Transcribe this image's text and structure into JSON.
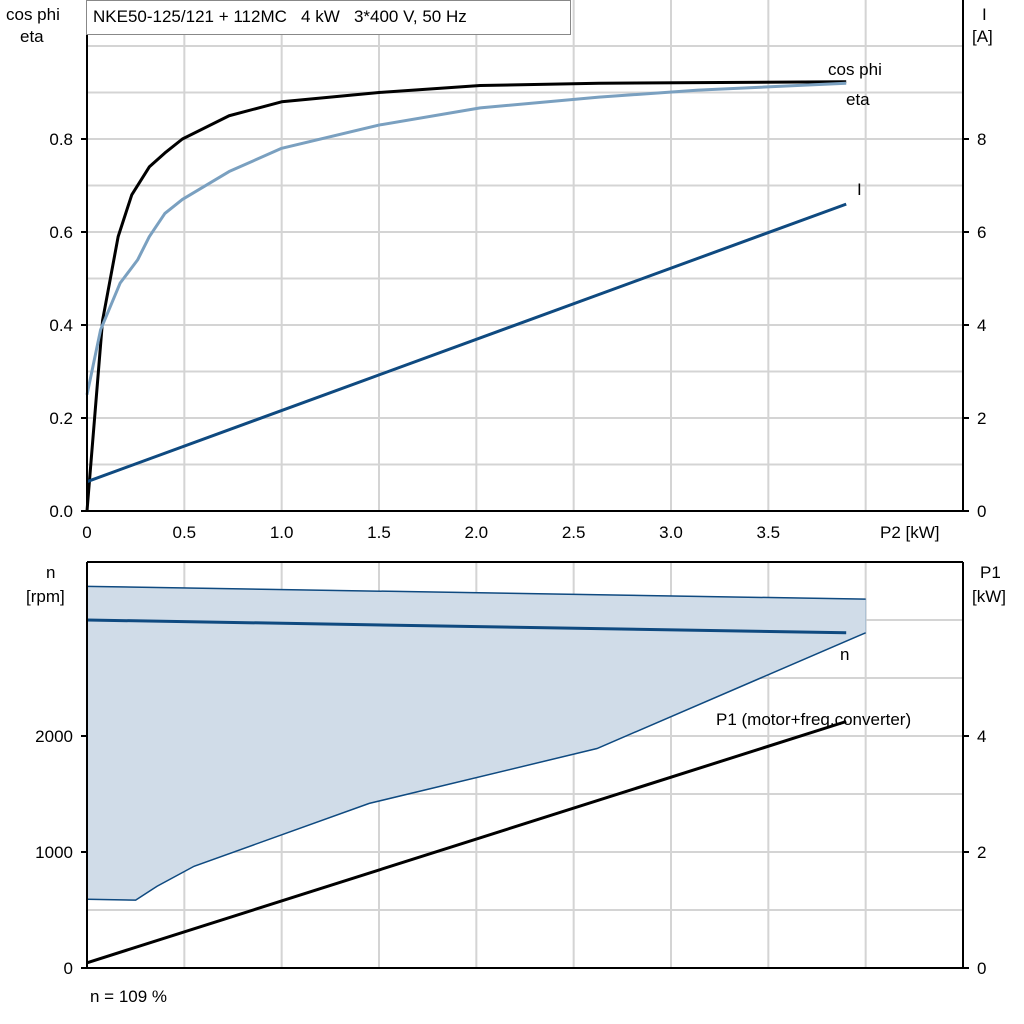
{
  "chart_data": [
    {
      "type": "line",
      "title": "NKE50-125/121 + 112MC   4 kW   3*400 V, 50 Hz",
      "xlabel": "P2 [kW]",
      "ylabel_left": [
        "cos phi",
        "eta"
      ],
      "ylabel_right": [
        "I",
        "[A]"
      ],
      "xlim": [
        0,
        4.5
      ],
      "ylim_left": [
        0,
        1.1
      ],
      "ylim_right": [
        0,
        11
      ],
      "x_ticks": [
        "0",
        "0.5",
        "1.0",
        "1.5",
        "2.0",
        "2.5",
        "3.0",
        "3.5"
      ],
      "x_tick_values": [
        0,
        0.5,
        1.0,
        1.5,
        2.0,
        2.5,
        3.0,
        3.5
      ],
      "y_ticks_left": [
        "0.0",
        "0.2",
        "0.4",
        "0.6",
        "0.8"
      ],
      "y_tick_values_left": [
        0,
        0.2,
        0.4,
        0.6,
        0.8
      ],
      "y_ticks_right": [
        "0",
        "2",
        "4",
        "6",
        "8"
      ],
      "y_tick_values_right": [
        0,
        2,
        4,
        6,
        8
      ],
      "grid": true,
      "series": [
        {
          "name": "eta",
          "axis": "left",
          "color": "#000000",
          "x": [
            0,
            0.08,
            0.16,
            0.23,
            0.32,
            0.4,
            0.49,
            0.73,
            1.0,
            1.5,
            2.02,
            2.63,
            3.9
          ],
          "y": [
            0,
            0.41,
            0.59,
            0.68,
            0.74,
            0.77,
            0.8,
            0.85,
            0.88,
            0.9,
            0.915,
            0.92,
            0.923
          ]
        },
        {
          "name": "cos phi",
          "axis": "left",
          "color": "#7aa0c0",
          "x": [
            0,
            0.07,
            0.17,
            0.26,
            0.32,
            0.4,
            0.49,
            0.73,
            1.0,
            1.5,
            2.02,
            2.63,
            3.14,
            3.9
          ],
          "y": [
            0.25,
            0.39,
            0.49,
            0.54,
            0.59,
            0.64,
            0.67,
            0.73,
            0.78,
            0.83,
            0.867,
            0.89,
            0.905,
            0.92
          ]
        },
        {
          "name": "I",
          "axis": "right",
          "color": "#0f4a80",
          "x": [
            0,
            3.9
          ],
          "y": [
            0.63,
            6.6
          ]
        }
      ]
    },
    {
      "type": "area",
      "xlim": [
        0,
        4.5
      ],
      "ylabel_left": [
        "n",
        "[rpm]"
      ],
      "ylabel_right": [
        "P1",
        "[kW]"
      ],
      "ylim_left": [
        0,
        3500
      ],
      "ylim_right": [
        0,
        7
      ],
      "y_ticks_left": [
        "0",
        "1000",
        "2000"
      ],
      "y_tick_values_left": [
        0,
        1000,
        2000
      ],
      "y_ticks_right": [
        "0",
        "2",
        "4"
      ],
      "y_tick_values_right": [
        0,
        2,
        4
      ],
      "grid": true,
      "annotation": "n = 109 %",
      "operating_range": {
        "color": "#d0dce8",
        "upper": {
          "x": [
            0,
            4.0
          ],
          "y": [
            3290,
            3180
          ]
        },
        "lower": {
          "x": [
            0,
            0.25,
            0.36,
            0.55,
            1.45,
            2.62,
            4.0
          ],
          "y": [
            593,
            585,
            705,
            877,
            1419,
            1892,
            2890
          ]
        }
      },
      "series": [
        {
          "name": "n",
          "axis": "left",
          "color": "#0f4a80",
          "x": [
            0,
            3.9
          ],
          "y": [
            3000,
            2890
          ]
        },
        {
          "name": "P1 (motor+freq.converter)",
          "axis": "right",
          "color": "#000000",
          "x": [
            0,
            3.9
          ],
          "y": [
            0.09,
            4.25
          ]
        }
      ]
    }
  ]
}
